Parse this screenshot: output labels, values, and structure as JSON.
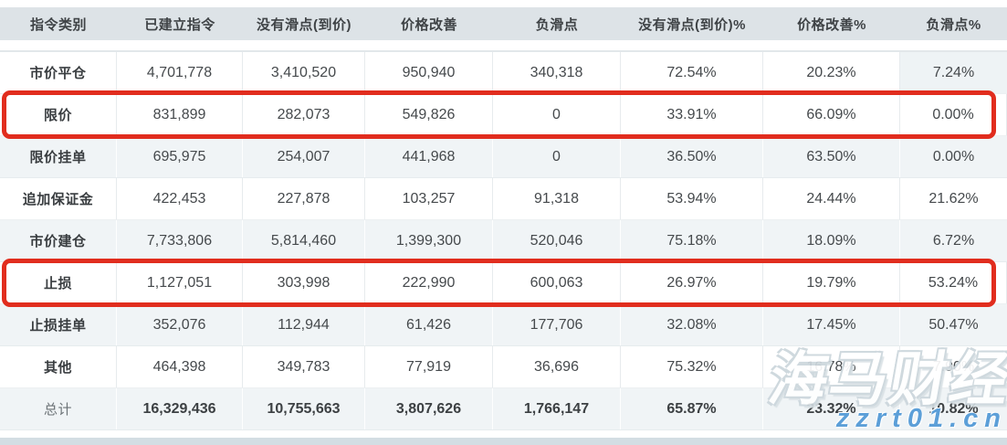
{
  "table": {
    "columns": [
      "指令类别",
      "已建立指令",
      "没有滑点(到价)",
      "价格改善",
      "负滑点",
      "没有滑点(到价)%",
      "价格改善%",
      "负滑点%"
    ],
    "rows": [
      {
        "label": "市价平仓",
        "values": [
          "4,701,778",
          "3,410,520",
          "950,940",
          "340,318",
          "72.54%",
          "20.23%",
          "7.24%"
        ],
        "shaded": false,
        "highlighted": false,
        "total": false
      },
      {
        "label": "限价",
        "values": [
          "831,899",
          "282,073",
          "549,826",
          "0",
          "33.91%",
          "66.09%",
          "0.00%"
        ],
        "shaded": false,
        "highlighted": true,
        "total": false
      },
      {
        "label": "限价挂单",
        "values": [
          "695,975",
          "254,007",
          "441,968",
          "0",
          "36.50%",
          "63.50%",
          "0.00%"
        ],
        "shaded": true,
        "highlighted": false,
        "total": false
      },
      {
        "label": "追加保证金",
        "values": [
          "422,453",
          "227,878",
          "103,257",
          "91,318",
          "53.94%",
          "24.44%",
          "21.62%"
        ],
        "shaded": false,
        "highlighted": false,
        "total": false
      },
      {
        "label": "市价建仓",
        "values": [
          "7,733,806",
          "5,814,460",
          "1,399,300",
          "520,046",
          "75.18%",
          "18.09%",
          "6.72%"
        ],
        "shaded": true,
        "highlighted": false,
        "total": false
      },
      {
        "label": "止损",
        "values": [
          "1,127,051",
          "303,998",
          "222,990",
          "600,063",
          "26.97%",
          "19.79%",
          "53.24%"
        ],
        "shaded": false,
        "highlighted": true,
        "total": false
      },
      {
        "label": "止损挂单",
        "values": [
          "352,076",
          "112,944",
          "61,426",
          "177,706",
          "32.08%",
          "17.45%",
          "50.47%"
        ],
        "shaded": true,
        "highlighted": false,
        "total": false
      },
      {
        "label": "其他",
        "values": [
          "464,398",
          "349,783",
          "77,919",
          "36,696",
          "75.32%",
          "16.78%",
          "7.90%"
        ],
        "shaded": false,
        "highlighted": false,
        "total": false
      },
      {
        "label": "总计",
        "values": [
          "16,329,436",
          "10,755,663",
          "3,807,626",
          "1,766,147",
          "65.87%",
          "23.32%",
          "10.82%"
        ],
        "shaded": true,
        "highlighted": false,
        "total": true
      }
    ]
  },
  "watermark": {
    "brand": "海马财经",
    "url": "zzrt01.cn"
  },
  "colors": {
    "header_bg": "#dde3e7",
    "shaded_row_bg": "#f0f4f6",
    "highlight_border": "#e12d1e",
    "watermark_blue": "#5c9fd8",
    "bottom_bar": "#d3dde3"
  }
}
